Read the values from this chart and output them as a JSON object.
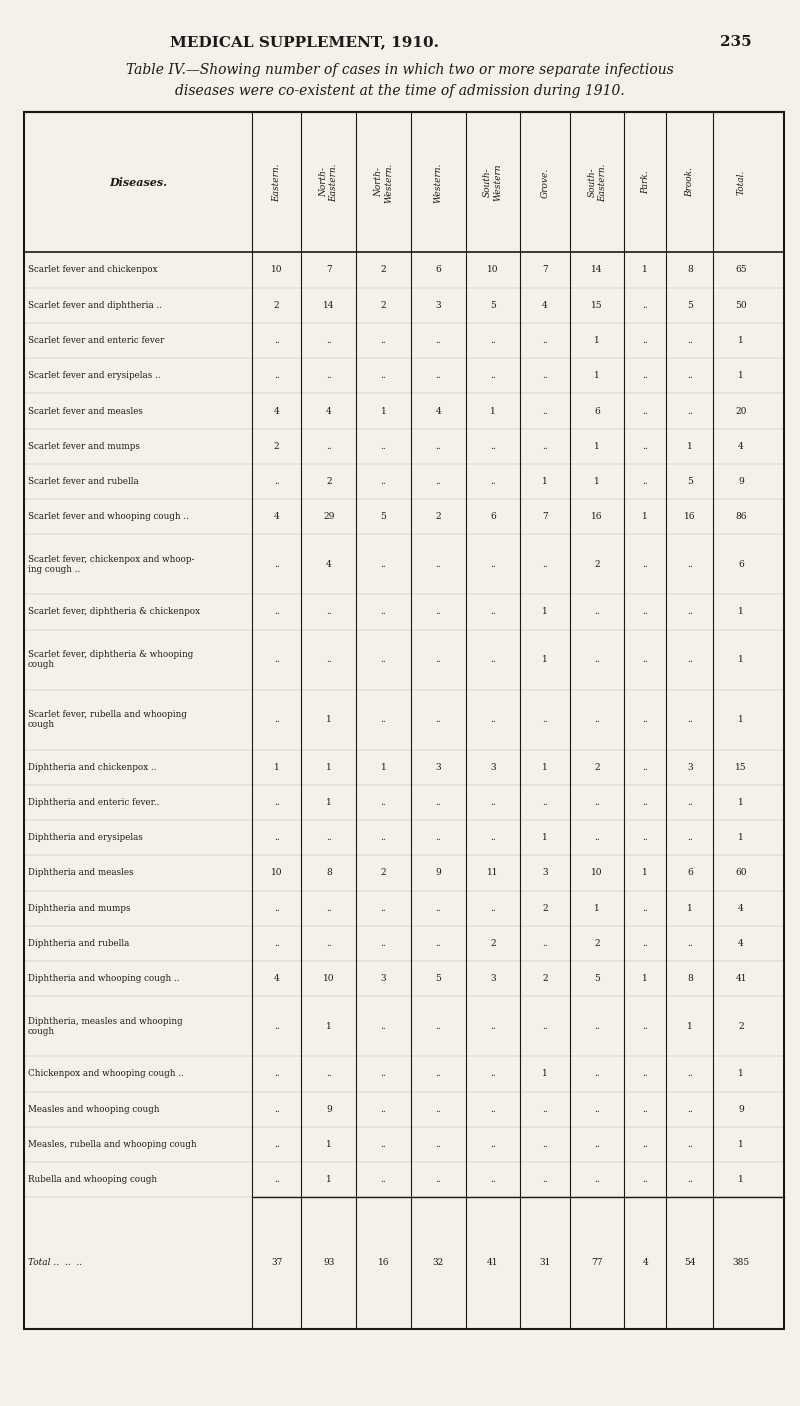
{
  "page_header": "MEDICAL SUPPLEMENT, 1910.",
  "page_number": "235",
  "title_line1": "Table IV.—Showing number of cases in which two or more separate infectious",
  "title_line2": "diseases were co-existent at the time of admission during 1910.",
  "col_headers": [
    "Diseases.",
    "Eastern.",
    "North-\nEastern.",
    "North-\nWestern.",
    "Western.",
    "South-\nWestern",
    "Grove.",
    "South-\nEastern.",
    "Park.",
    "Brook.",
    "Total."
  ],
  "rows": [
    [
      "Scarlet fever and chickenpox",
      "10",
      "7",
      "2",
      "6",
      "10",
      "7",
      "14",
      "1",
      "8",
      "65"
    ],
    [
      "Scarlet fever and diphtheria ..",
      "2",
      "14",
      "2",
      "3",
      "5",
      "4",
      "15",
      "..",
      "5",
      "50"
    ],
    [
      "Scarlet fever and enteric fever",
      "..",
      "..",
      "..",
      "..",
      "..",
      "..",
      "1",
      "..",
      "..",
      "1"
    ],
    [
      "Scarlet fever and erysipelas ..",
      "..",
      "..",
      "..",
      "..",
      "..",
      "..",
      "1",
      "..",
      "..",
      "1"
    ],
    [
      "Scarlet fever and measles",
      "4",
      "4",
      "1",
      "4",
      "1",
      "..",
      "6",
      "..",
      "..",
      "20"
    ],
    [
      "Scarlet fever and mumps",
      "2",
      "..",
      "..",
      "..",
      "..",
      "..",
      "1",
      "..",
      "1",
      "4"
    ],
    [
      "Scarlet fever and rubella",
      "..",
      "2",
      "..",
      "..",
      "..",
      "1",
      "1",
      "..",
      "5",
      "9"
    ],
    [
      "Scarlet fever and whooping cough ..",
      "4",
      "29",
      "5",
      "2",
      "6",
      "7",
      "16",
      "1",
      "16",
      "86"
    ],
    [
      "Scarlet fever, chickenpox and whoop-\ning cough ..",
      "..",
      "4",
      "..",
      "..",
      "..",
      "..",
      "2",
      "..",
      "..",
      "6"
    ],
    [
      "Scarlet fever, diphtheria & chickenpox",
      "..",
      "..",
      "..",
      "..",
      "..",
      "1",
      "..",
      "..",
      "..",
      "1"
    ],
    [
      "Scarlet fever, diphtheria & whooping\ncough",
      "..",
      "..",
      "..",
      "..",
      "..",
      "1",
      "..",
      "..",
      "..",
      "1"
    ],
    [
      "Scarlet fever, rubella and whooping\ncough",
      "..",
      "1",
      "..",
      "..",
      "..",
      "..",
      "..",
      "..",
      "..",
      "1"
    ],
    [
      "Diphtheria and chickenpox ..",
      "1",
      "1",
      "1",
      "3",
      "3",
      "1",
      "2",
      "..",
      "3",
      "15"
    ],
    [
      "Diphtheria and enteric fever..",
      "..",
      "1",
      "..",
      "..",
      "..",
      "..",
      "..",
      "..",
      "..",
      "1"
    ],
    [
      "Diphtheria and erysipelas",
      "..",
      "..",
      "..",
      "..",
      "..",
      "1",
      "..",
      "..",
      "..",
      "1"
    ],
    [
      "Diphtheria and measles",
      "10",
      "8",
      "2",
      "9",
      "11",
      "3",
      "10",
      "1",
      "6",
      "60"
    ],
    [
      "Diphtheria and mumps",
      "..",
      "..",
      "..",
      "..",
      "..",
      "2",
      "1",
      "..",
      "1",
      "4"
    ],
    [
      "Diphtheria and rubella",
      "..",
      "..",
      "..",
      "..",
      "2",
      "..",
      "2",
      "..",
      "..",
      "4"
    ],
    [
      "Diphtheria and whooping cough ..",
      "4",
      "10",
      "3",
      "5",
      "3",
      "2",
      "5",
      "1",
      "8",
      "41"
    ],
    [
      "Diphtheria, measles and whooping\ncough",
      "..",
      "1",
      "..",
      "..",
      "..",
      "..",
      "..",
      "..",
      "1",
      "2"
    ],
    [
      "Chickenpox and whooping cough ..",
      "..",
      "..",
      "..",
      "..",
      "..",
      "1",
      "..",
      "..",
      "..",
      "1"
    ],
    [
      "Measles and whooping cough",
      "..",
      "9",
      "..",
      "..",
      "..",
      "..",
      "..",
      "..",
      "..",
      "9"
    ],
    [
      "Measles, rubella and whooping cough",
      "..",
      "1",
      "..",
      "..",
      "..",
      "..",
      "..",
      "..",
      "..",
      "1"
    ],
    [
      "Rubella and whooping cough",
      "..",
      "1",
      "..",
      "..",
      "..",
      "..",
      "..",
      "..",
      "..",
      "1"
    ]
  ],
  "totals_row": [
    "Total ..  ..  ..",
    "37",
    "93",
    "16",
    "32",
    "41",
    "31",
    "77",
    "4",
    "54",
    "385"
  ],
  "bg_color": "#f5f0e8",
  "text_color": "#1a1a1a",
  "border_color": "#1a1a1a"
}
